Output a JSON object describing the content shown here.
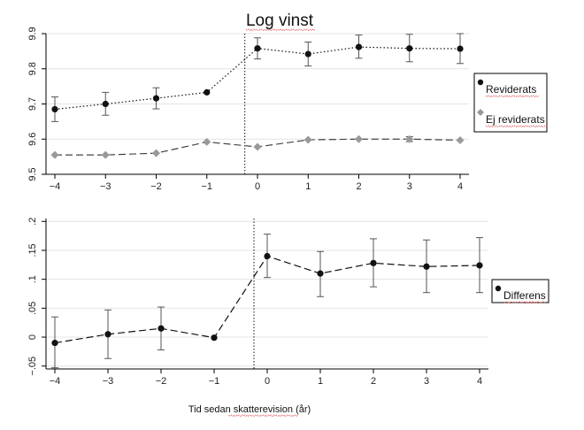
{
  "chart_data": [
    {
      "type": "line",
      "title": "Log vinst",
      "x": [
        -4,
        -3,
        -2,
        -1,
        0,
        1,
        2,
        3,
        4
      ],
      "x_ticks": [
        "−4",
        "−3",
        "−2",
        "−1",
        "0",
        "1",
        "2",
        "3",
        "4"
      ],
      "ylim": [
        9.5,
        9.9
      ],
      "y_ticks": [
        "9.5",
        "9.6",
        "9.7",
        "9.8",
        "9.9"
      ],
      "y_tick_values": [
        9.5,
        9.6,
        9.7,
        9.8,
        9.9
      ],
      "vline_x": -0.25,
      "legend_position": "right",
      "series": [
        {
          "name": "Reviderats",
          "marker": "circle",
          "line_style": "dotted",
          "color": "#111111",
          "values": [
            9.685,
            9.7,
            9.716,
            9.733,
            9.858,
            9.842,
            9.862,
            9.858,
            9.857
          ],
          "ci_low": [
            9.65,
            9.668,
            9.686,
            null,
            9.828,
            9.808,
            9.83,
            9.82,
            9.815
          ],
          "ci_high": [
            9.72,
            9.733,
            9.746,
            null,
            9.888,
            9.876,
            9.896,
            9.898,
            9.9
          ]
        },
        {
          "name": "Ej reviderats",
          "marker": "diamond",
          "line_style": "dashed",
          "color": "#999999",
          "values": [
            9.555,
            9.555,
            9.56,
            9.592,
            9.578,
            9.598,
            9.6,
            9.6,
            9.597
          ],
          "ci_low": [
            null,
            null,
            null,
            null,
            null,
            null,
            null,
            9.593,
            null
          ],
          "ci_high": [
            null,
            null,
            null,
            null,
            null,
            null,
            null,
            9.607,
            null
          ]
        }
      ]
    },
    {
      "type": "line",
      "x": [
        -4,
        -3,
        -2,
        -1,
        0,
        1,
        2,
        3,
        4
      ],
      "x_ticks": [
        "−4",
        "−3",
        "−2",
        "−1",
        "0",
        "1",
        "2",
        "3",
        "4"
      ],
      "ylim": [
        -0.055,
        0.205
      ],
      "y_ticks": [
        "−.05",
        "0",
        ".05",
        ".1",
        ".15",
        ".2"
      ],
      "y_tick_values": [
        -0.05,
        0,
        0.05,
        0.1,
        0.15,
        0.2
      ],
      "xlabel": "Tid sedan skatterevision (år)",
      "vline_x": -0.25,
      "legend_position": "right",
      "series": [
        {
          "name": "Differens",
          "marker": "circle",
          "line_style": "dashed",
          "color": "#111111",
          "values": [
            -0.01,
            0.005,
            0.015,
            -0.001,
            0.14,
            0.11,
            0.128,
            0.122,
            0.124
          ],
          "ci_low": [
            -0.053,
            -0.037,
            -0.022,
            null,
            0.103,
            0.07,
            0.087,
            0.077,
            0.077
          ],
          "ci_high": [
            0.035,
            0.047,
            0.052,
            null,
            0.178,
            0.148,
            0.17,
            0.168,
            0.172
          ]
        }
      ]
    }
  ]
}
